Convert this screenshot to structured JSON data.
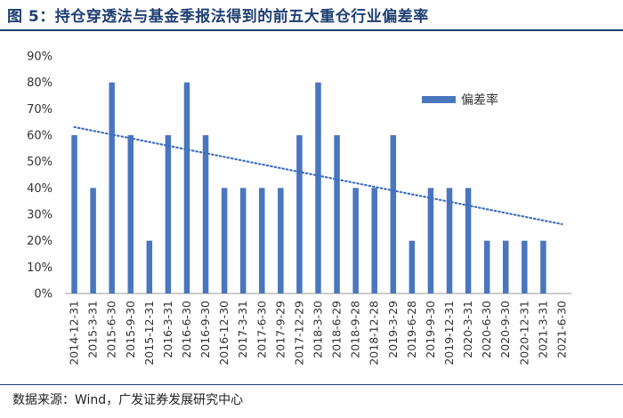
{
  "title": "图  5：持仓穿透法与基金季报法得到的前五大重仓行业偏差率",
  "source": "数据来源：Wind，广发证券发展研究中心",
  "colors": {
    "bar": "#4a76be",
    "trend": "#3f6fbf",
    "title": "#1f3f73"
  },
  "chart_data": {
    "type": "bar",
    "title": "持仓穿透法与基金季报法得到的前五大重仓行业偏差率",
    "categories": [
      "2014-12-31",
      "2015-3-31",
      "2015-6-30",
      "2015-9-30",
      "2015-12-31",
      "2016-3-31",
      "2016-6-30",
      "2016-9-30",
      "2016-12-30",
      "2017-3-31",
      "2017-6-30",
      "2017-9-29",
      "2017-12-29",
      "2018-3-30",
      "2018-6-29",
      "2018-9-28",
      "2018-12-28",
      "2019-3-29",
      "2019-6-28",
      "2019-9-30",
      "2019-12-31",
      "2020-3-31",
      "2020-6-30",
      "2020-9-30",
      "2020-12-31",
      "2021-3-31",
      "2021-6-30"
    ],
    "series": [
      {
        "name": "偏差率",
        "values": [
          60,
          40,
          80,
          60,
          20,
          60,
          80,
          60,
          40,
          40,
          40,
          40,
          60,
          80,
          60,
          40,
          40,
          60,
          20,
          40,
          40,
          40,
          20,
          20,
          20,
          20,
          null
        ]
      }
    ],
    "trendline": {
      "type": "linear",
      "style": "dotted"
    },
    "y_ticks": [
      "0%",
      "10%",
      "20%",
      "30%",
      "40%",
      "50%",
      "60%",
      "70%",
      "80%",
      "90%"
    ],
    "ylim": [
      0,
      90
    ],
    "xlabel": "",
    "ylabel": "",
    "legend": "upper-right"
  }
}
